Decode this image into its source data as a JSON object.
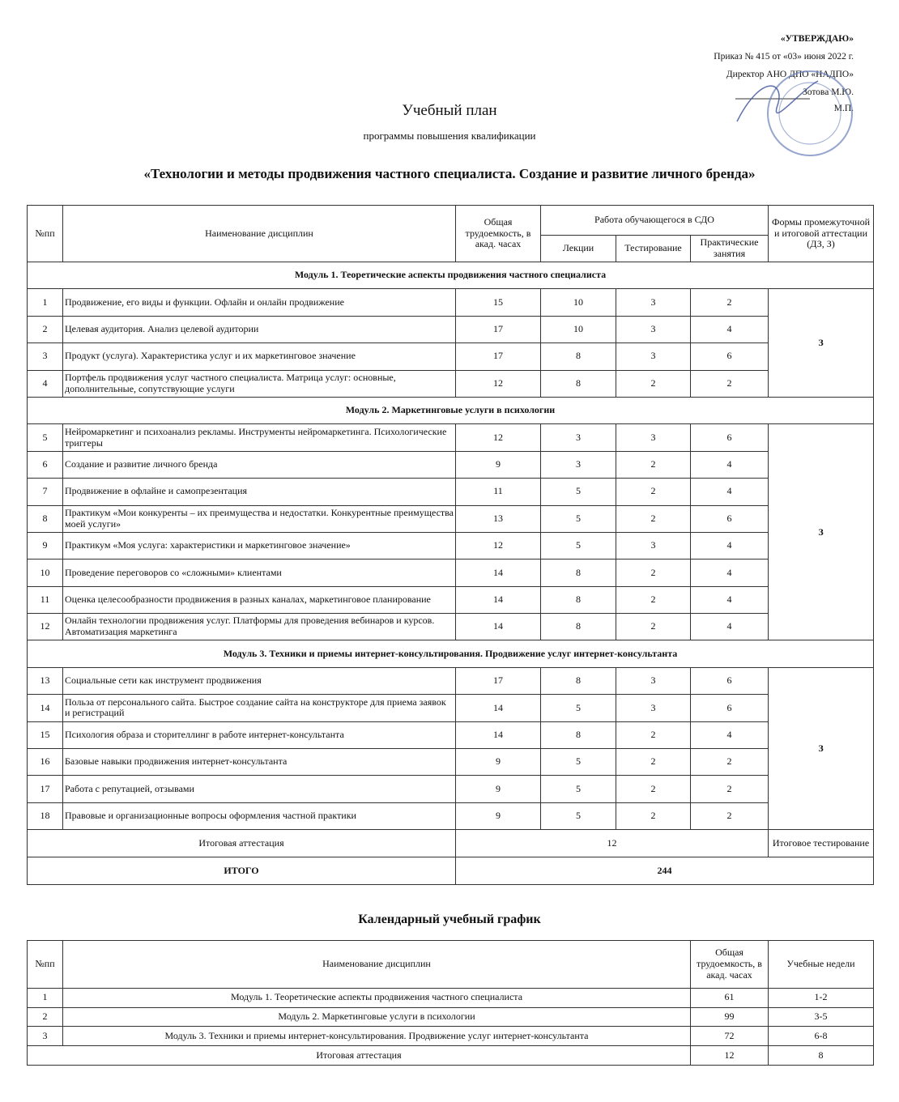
{
  "approval": {
    "title": "«УТВЕРЖДАЮ»",
    "order": "Приказ № 415 от «03» июня 2022 г.",
    "director": "Директор АНО ДПО «НАДПО»",
    "name": "Зотова М.Ю.",
    "seal": "М.П."
  },
  "header": {
    "title": "Учебный план",
    "subtitle": "программы повышения квалификации",
    "program": "«Технологии и методы продвижения частного специалиста. Создание и развитие личного бренда»"
  },
  "plan": {
    "headers": [
      "№пп",
      "Наименование дисциплин",
      "Общая трудоемкость, в акад. часах",
      "Работа обучающегося в СДО",
      "Формы промежуточной и итоговой аттестации (ДЗ, З)"
    ],
    "subheaders": [
      "Лекции",
      "Тестирование",
      "Практические занятия"
    ],
    "modules": [
      {
        "title": "Модуль 1. Теоретические аспекты продвижения частного специалиста",
        "attestation": "З",
        "rows": [
          [
            1,
            "Продвижение, его виды и функции. Офлайн и онлайн продвижение",
            15,
            10,
            3,
            2
          ],
          [
            2,
            "Целевая аудитория. Анализ целевой аудитории",
            17,
            10,
            3,
            4
          ],
          [
            3,
            "Продукт (услуга). Характеристика услуг и их маркетинговое значение",
            17,
            8,
            3,
            6
          ],
          [
            4,
            "Портфель продвижения услуг частного специалиста. Матрица услуг: основные, дополнительные, сопутствующие услуги",
            12,
            8,
            2,
            2
          ]
        ]
      },
      {
        "title": "Модуль 2. Маркетинговые услуги в психологии",
        "attestation": "З",
        "rows": [
          [
            5,
            "Нейромаркетинг и психоанализ рекламы. Инструменты нейромаркетинга. Психологические триггеры",
            12,
            3,
            3,
            6
          ],
          [
            6,
            "Создание и развитие личного бренда",
            9,
            3,
            2,
            4
          ],
          [
            7,
            "Продвижение в офлайне и самопрезентация",
            11,
            5,
            2,
            4
          ],
          [
            8,
            "Практикум «Мои конкуренты – их преимущества и недостатки. Конкурентные преимущества моей услуги»",
            13,
            5,
            2,
            6
          ],
          [
            9,
            "Практикум «Моя услуга: характеристики и маркетинговое значение»",
            12,
            5,
            3,
            4
          ],
          [
            10,
            "Проведение переговоров со «сложными» клиентами",
            14,
            8,
            2,
            4
          ],
          [
            11,
            "Оценка целесообразности продвижения в разных каналах, маркетинговое планирование",
            14,
            8,
            2,
            4
          ],
          [
            12,
            "Онлайн технологии продвижения услуг. Платформы для проведения вебинаров и курсов. Автоматизация маркетинга",
            14,
            8,
            2,
            4
          ]
        ]
      },
      {
        "title": "Модуль 3. Техники и приемы интернет-консультирования. Продвижение услуг интернет-консультанта",
        "attestation": "З",
        "rows": [
          [
            13,
            "Социальные сети как инструмент продвижения",
            17,
            8,
            3,
            6
          ],
          [
            14,
            "Польза от персонального сайта. Быстрое создание сайта на конструкторе для приема заявок и регистраций",
            14,
            5,
            3,
            6
          ],
          [
            15,
            "Психология образа и сторителлинг в работе интернет-консультанта",
            14,
            8,
            2,
            4
          ],
          [
            16,
            "Базовые навыки продвижения интернет-консультанта",
            9,
            5,
            2,
            2
          ],
          [
            17,
            "Работа с репутацией, отзывами",
            9,
            5,
            2,
            2
          ],
          [
            18,
            "Правовые и организационные вопросы оформления частной практики",
            9,
            5,
            2,
            2
          ]
        ]
      }
    ],
    "final": {
      "label": "Итоговая аттестация",
      "hours": 12,
      "form": "Итоговое тестирование"
    },
    "total": {
      "label": "ИТОГО",
      "hours": 244
    }
  },
  "calendar": {
    "title": "Календарный учебный график",
    "headers": [
      "№пп",
      "Наименование дисциплин",
      "Общая трудоемкость, в акад. часах",
      "Учебные недели"
    ],
    "rows": [
      [
        1,
        "Модуль 1. Теоретические аспекты продвижения частного специалиста",
        61,
        "1-2"
      ],
      [
        2,
        "Модуль 2. Маркетинговые услуги в психологии",
        99,
        "3-5"
      ],
      [
        3,
        "Модуль 3. Техники и приемы интернет-консультирования. Продвижение услуг интернет-консультанта",
        72,
        "6-8"
      ]
    ],
    "final": {
      "label": "Итоговая аттестация",
      "hours": 12,
      "weeks": 8
    }
  }
}
